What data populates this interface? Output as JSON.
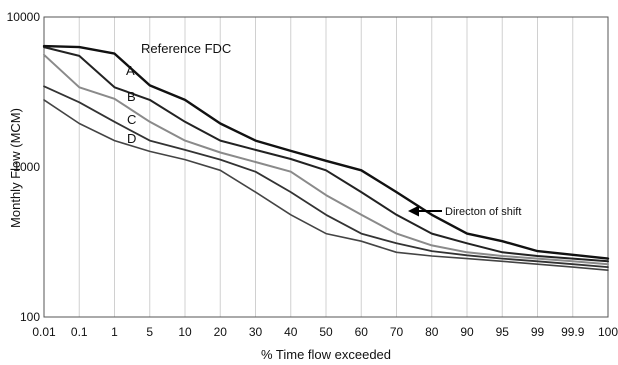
{
  "chart_data": {
    "type": "line",
    "title": "",
    "xlabel": "% Time flow exceeded",
    "ylabel": "Monthly Flow (MCM)",
    "y_scale": "log",
    "ylim": [
      100,
      10000
    ],
    "y_ticks": [
      "100",
      "1000",
      "10000"
    ],
    "categories": [
      "0.01",
      "0.1",
      "1",
      "5",
      "10",
      "20",
      "30",
      "40",
      "50",
      "60",
      "70",
      "80",
      "90",
      "95",
      "99",
      "99.9",
      "100"
    ],
    "grid": "vertical lines at each category",
    "series": [
      {
        "name": "Reference FDC",
        "color": "#111111",
        "width": 2.4,
        "values": [
          6400,
          6300,
          5700,
          3500,
          2800,
          1950,
          1500,
          1280,
          1100,
          950,
          680,
          480,
          360,
          320,
          275,
          260,
          245
        ]
      },
      {
        "name": "A",
        "color": "#222222",
        "width": 2.0,
        "values": [
          6300,
          5500,
          3400,
          2800,
          2000,
          1500,
          1300,
          1130,
          950,
          680,
          480,
          360,
          310,
          270,
          255,
          245,
          235
        ]
      },
      {
        "name": "B",
        "color": "#8a8a8a",
        "width": 2.0,
        "values": [
          5600,
          3400,
          2850,
          2000,
          1500,
          1250,
          1080,
          930,
          650,
          480,
          360,
          300,
          270,
          255,
          245,
          235,
          225
        ]
      },
      {
        "name": "C",
        "color": "#333333",
        "width": 1.8,
        "values": [
          3450,
          2700,
          2000,
          1500,
          1300,
          1120,
          930,
          680,
          480,
          360,
          310,
          275,
          258,
          245,
          235,
          225,
          215
        ]
      },
      {
        "name": "D",
        "color": "#444444",
        "width": 1.6,
        "values": [
          2800,
          1950,
          1500,
          1270,
          1120,
          950,
          680,
          480,
          360,
          320,
          270,
          255,
          245,
          235,
          225,
          215,
          205
        ]
      }
    ],
    "annotations": {
      "reference": "Reference FDC",
      "a": "A",
      "b": "B",
      "c": "C",
      "d": "D",
      "shift": "Directon of shift"
    }
  }
}
